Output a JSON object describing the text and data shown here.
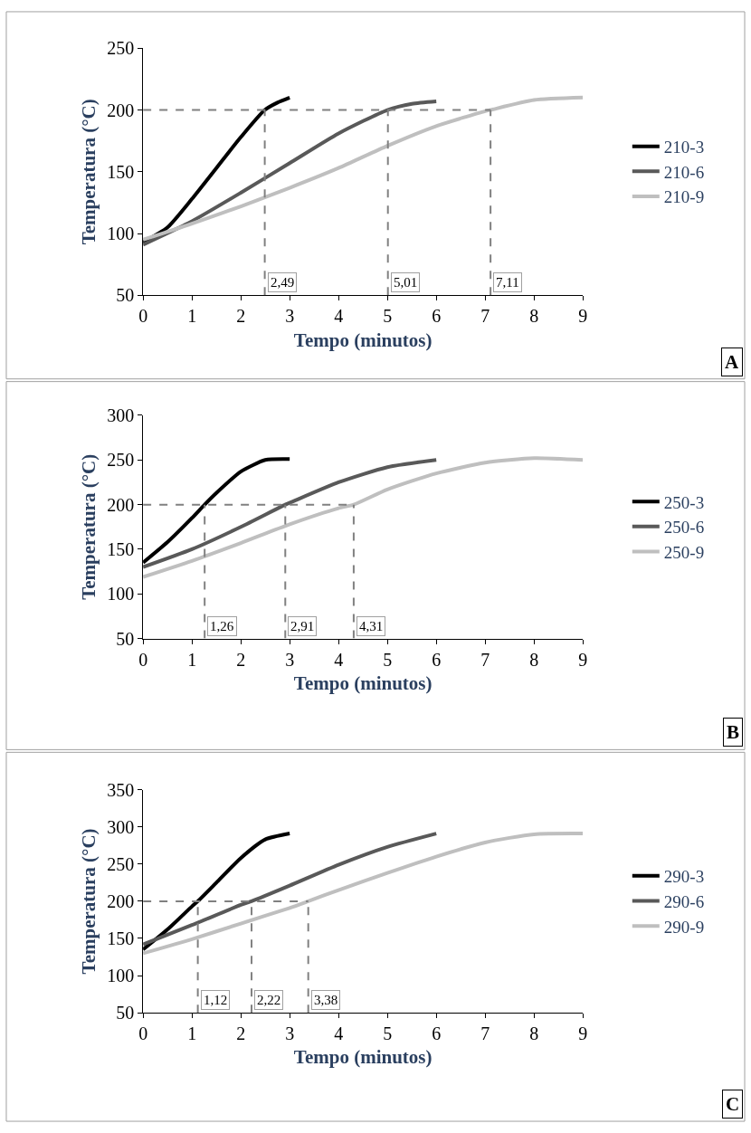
{
  "chart_data": [
    {
      "type": "line",
      "xlabel": "Tempo (minutos)",
      "ylabel": "Temperatura (°C)",
      "xlim": [
        0,
        9
      ],
      "xticks": [
        0,
        1,
        2,
        3,
        4,
        5,
        6,
        7,
        8,
        9
      ],
      "ylim": [
        50,
        250
      ],
      "yticks": [
        50,
        100,
        150,
        200,
        250
      ],
      "legend": "right",
      "marker": "none",
      "line_style": "solid",
      "annotations": [
        "A"
      ],
      "series": [
        {
          "name": "210-3",
          "color": "#000000",
          "x": [
            0,
            0.5,
            1,
            1.5,
            2,
            2.49,
            2.75,
            3
          ],
          "values": [
            93,
            105,
            128,
            153,
            178,
            200,
            206,
            210
          ]
        },
        {
          "name": "210-6",
          "color": "#595959",
          "x": [
            0,
            1,
            2,
            3,
            4,
            5,
            5.5,
            6
          ],
          "values": [
            91,
            110,
            133,
            157,
            181,
            200,
            205,
            207
          ]
        },
        {
          "name": "210-9",
          "color": "#bfbfbf",
          "x": [
            0,
            1,
            2,
            3,
            4,
            5,
            6,
            7,
            7.11,
            8,
            9
          ],
          "values": [
            95,
            108,
            122,
            137,
            153,
            171,
            187,
            199,
            200,
            208,
            210
          ]
        }
      ],
      "ref_lines": [
        {
          "axis": "y",
          "value": 200,
          "label": null,
          "color": "#808080",
          "line_style": "dashed"
        },
        {
          "axis": "x",
          "value": 2.49,
          "label": "2,49",
          "color": "#808080",
          "line_style": "dashed"
        },
        {
          "axis": "x",
          "value": 5.01,
          "label": "5,01",
          "color": "#808080",
          "line_style": "dashed"
        },
        {
          "axis": "x",
          "value": 7.11,
          "label": "7,11",
          "color": "#808080",
          "line_style": "dashed"
        }
      ]
    },
    {
      "type": "line",
      "xlabel": "Tempo (minutos)",
      "ylabel": "Temperatura (°C)",
      "xlim": [
        0,
        9
      ],
      "xticks": [
        0,
        1,
        2,
        3,
        4,
        5,
        6,
        7,
        8,
        9
      ],
      "ylim": [
        50,
        300
      ],
      "yticks": [
        50,
        100,
        150,
        200,
        250,
        300
      ],
      "legend": "right",
      "marker": "none",
      "line_style": "solid",
      "annotations": [
        "B"
      ],
      "series": [
        {
          "name": "250-3",
          "color": "#000000",
          "x": [
            0,
            0.5,
            1,
            1.26,
            1.5,
            2,
            2.5,
            3
          ],
          "values": [
            135,
            158,
            185,
            200,
            213,
            237,
            250,
            251
          ]
        },
        {
          "name": "250-6",
          "color": "#595959",
          "x": [
            0,
            1,
            2,
            2.91,
            3,
            4,
            5,
            6
          ],
          "values": [
            130,
            150,
            175,
            200,
            202,
            225,
            242,
            250
          ]
        },
        {
          "name": "250-9",
          "color": "#bfbfbf",
          "x": [
            0,
            1,
            2,
            3,
            4,
            4.31,
            5,
            6,
            7,
            8,
            9
          ],
          "values": [
            119,
            137,
            157,
            178,
            196,
            200,
            217,
            235,
            247,
            252,
            250
          ]
        }
      ],
      "ref_lines": [
        {
          "axis": "y",
          "value": 200,
          "label": null,
          "color": "#808080",
          "line_style": "dashed"
        },
        {
          "axis": "x",
          "value": 1.26,
          "label": "1,26",
          "color": "#808080",
          "line_style": "dashed"
        },
        {
          "axis": "x",
          "value": 2.91,
          "label": "2,91",
          "color": "#808080",
          "line_style": "dashed"
        },
        {
          "axis": "x",
          "value": 4.31,
          "label": "4,31",
          "color": "#808080",
          "line_style": "dashed"
        }
      ]
    },
    {
      "type": "line",
      "xlabel": "Tempo (minutos)",
      "ylabel": "Temperatura (°C)",
      "xlim": [
        0,
        9
      ],
      "xticks": [
        0,
        1,
        2,
        3,
        4,
        5,
        6,
        7,
        8,
        9
      ],
      "ylim": [
        50,
        350
      ],
      "yticks": [
        50,
        100,
        150,
        200,
        250,
        300,
        350
      ],
      "legend": "right",
      "marker": "none",
      "line_style": "solid",
      "annotations": [
        "C"
      ],
      "series": [
        {
          "name": "290-3",
          "color": "#000000",
          "x": [
            0,
            0.5,
            1,
            1.12,
            1.5,
            2,
            2.5,
            3
          ],
          "values": [
            135,
            162,
            193,
            200,
            225,
            258,
            283,
            291
          ]
        },
        {
          "name": "290-6",
          "color": "#595959",
          "x": [
            0,
            1,
            2,
            2.22,
            3,
            4,
            5,
            6
          ],
          "values": [
            142,
            168,
            195,
            200,
            221,
            249,
            273,
            291
          ]
        },
        {
          "name": "290-9",
          "color": "#bfbfbf",
          "x": [
            0,
            1,
            2,
            3,
            3.38,
            4,
            5,
            6,
            7,
            8,
            9
          ],
          "values": [
            130,
            149,
            170,
            191,
            200,
            215,
            238,
            260,
            279,
            290,
            291
          ]
        }
      ],
      "ref_lines": [
        {
          "axis": "y",
          "value": 200,
          "label": null,
          "color": "#808080",
          "line_style": "dashed"
        },
        {
          "axis": "x",
          "value": 1.12,
          "label": "1,12",
          "color": "#808080",
          "line_style": "dashed"
        },
        {
          "axis": "x",
          "value": 2.22,
          "label": "2,22",
          "color": "#808080",
          "line_style": "dashed"
        },
        {
          "axis": "x",
          "value": 3.38,
          "label": "3,38",
          "color": "#808080",
          "line_style": "dashed"
        }
      ]
    }
  ]
}
